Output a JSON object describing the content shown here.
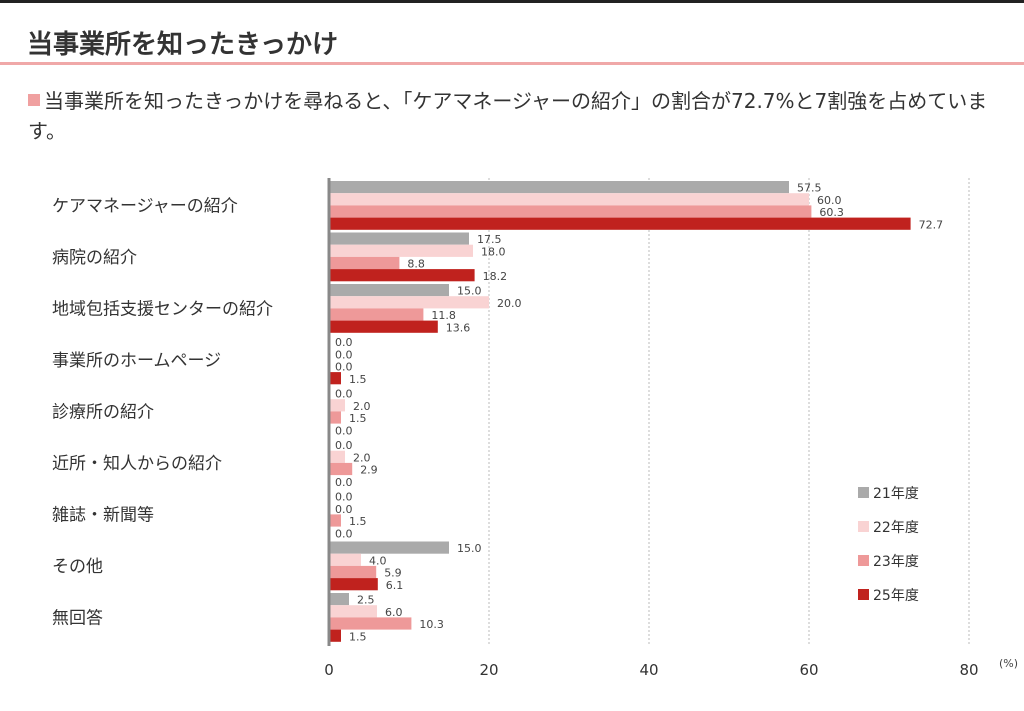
{
  "page": {
    "title": "当事業所を知ったきっかけ",
    "lead_text": "当事業所を知ったきっかけを尋ねると、「ケアマネージャーの紹介」の割合が72.7%と7割強を占めています。"
  },
  "chart_data": {
    "type": "bar",
    "orientation": "horizontal",
    "categories": [
      "ケアマネージャーの紹介",
      "病院の紹介",
      "地域包括支援センターの紹介",
      "事業所のホームページ",
      "診療所の紹介",
      "近所・知人からの紹介",
      "雑誌・新聞等",
      "その他",
      "無回答"
    ],
    "series": [
      {
        "name": "21年度",
        "color": "#aaaaaa",
        "values": [
          57.5,
          17.5,
          15.0,
          0.0,
          0.0,
          0.0,
          0.0,
          15.0,
          2.5
        ]
      },
      {
        "name": "22年度",
        "color": "#f9d3d3",
        "values": [
          60.0,
          18.0,
          20.0,
          0.0,
          2.0,
          2.0,
          0.0,
          4.0,
          6.0
        ]
      },
      {
        "name": "23年度",
        "color": "#ee9999",
        "values": [
          60.3,
          8.8,
          11.8,
          0.0,
          1.5,
          2.9,
          1.5,
          5.9,
          10.3
        ]
      },
      {
        "name": "25年度",
        "color": "#c0221e",
        "values": [
          72.7,
          18.2,
          13.6,
          1.5,
          0.0,
          0.0,
          0.0,
          6.1,
          1.5
        ]
      }
    ],
    "xlim": [
      0,
      80
    ],
    "xticks": [
      0,
      20,
      40,
      60,
      80
    ],
    "x_unit": "(%)",
    "grid": "vertical dashed",
    "legend_position": "bottom-right",
    "value_format": "0.0"
  }
}
